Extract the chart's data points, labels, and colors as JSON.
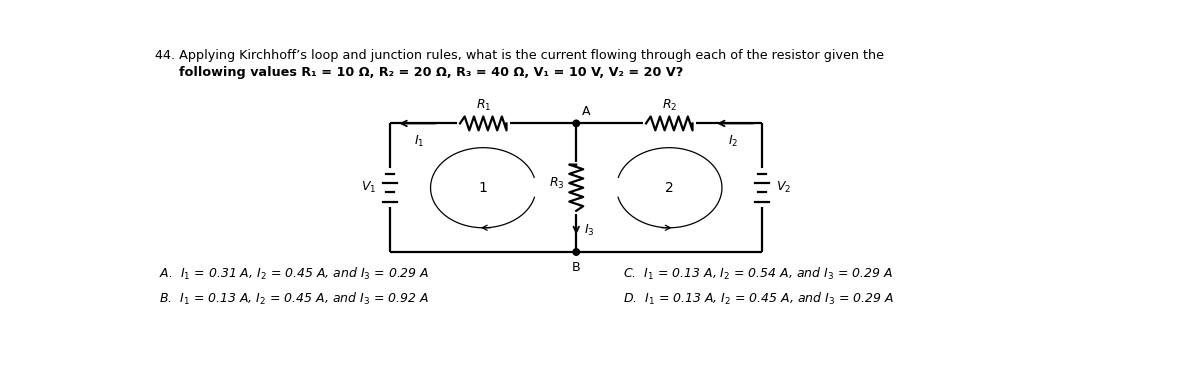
{
  "title_line1": "44. Applying Kirchhoff’s loop and junction rules, what is the current flowing through each of the resistor given the",
  "title_line2": "following values R₁ = 10 Ω, R₂ = 20 Ω, R₃ = 40 Ω, V₁ = 10 V, V₂ = 20 V?",
  "option_A": "A.  $I_1$ = 0.31 A, $I_2$ = 0.45 A, and $I_3$ = 0.29 A",
  "option_B": "B.  $I_1$ = 0.13 A, $I_2$ = 0.45 A, and $I_3$ = 0.92 A",
  "option_C": "C.  $I_1$ = 0.13 A, $I_2$ = 0.54 A, and $I_3$ = 0.29 A",
  "option_D": "D.  $I_1$ = 0.13 A, $I_2$ = 0.45 A, and $I_3$ = 0.29 A",
  "bg_color": "#ffffff",
  "text_color": "#000000",
  "circuit_color": "#000000",
  "TL": [
    3.1,
    2.72
  ],
  "A": [
    5.5,
    2.72
  ],
  "TR": [
    7.9,
    2.72
  ],
  "BL": [
    3.1,
    1.05
  ],
  "B": [
    5.5,
    1.05
  ],
  "BR": [
    7.9,
    1.05
  ]
}
